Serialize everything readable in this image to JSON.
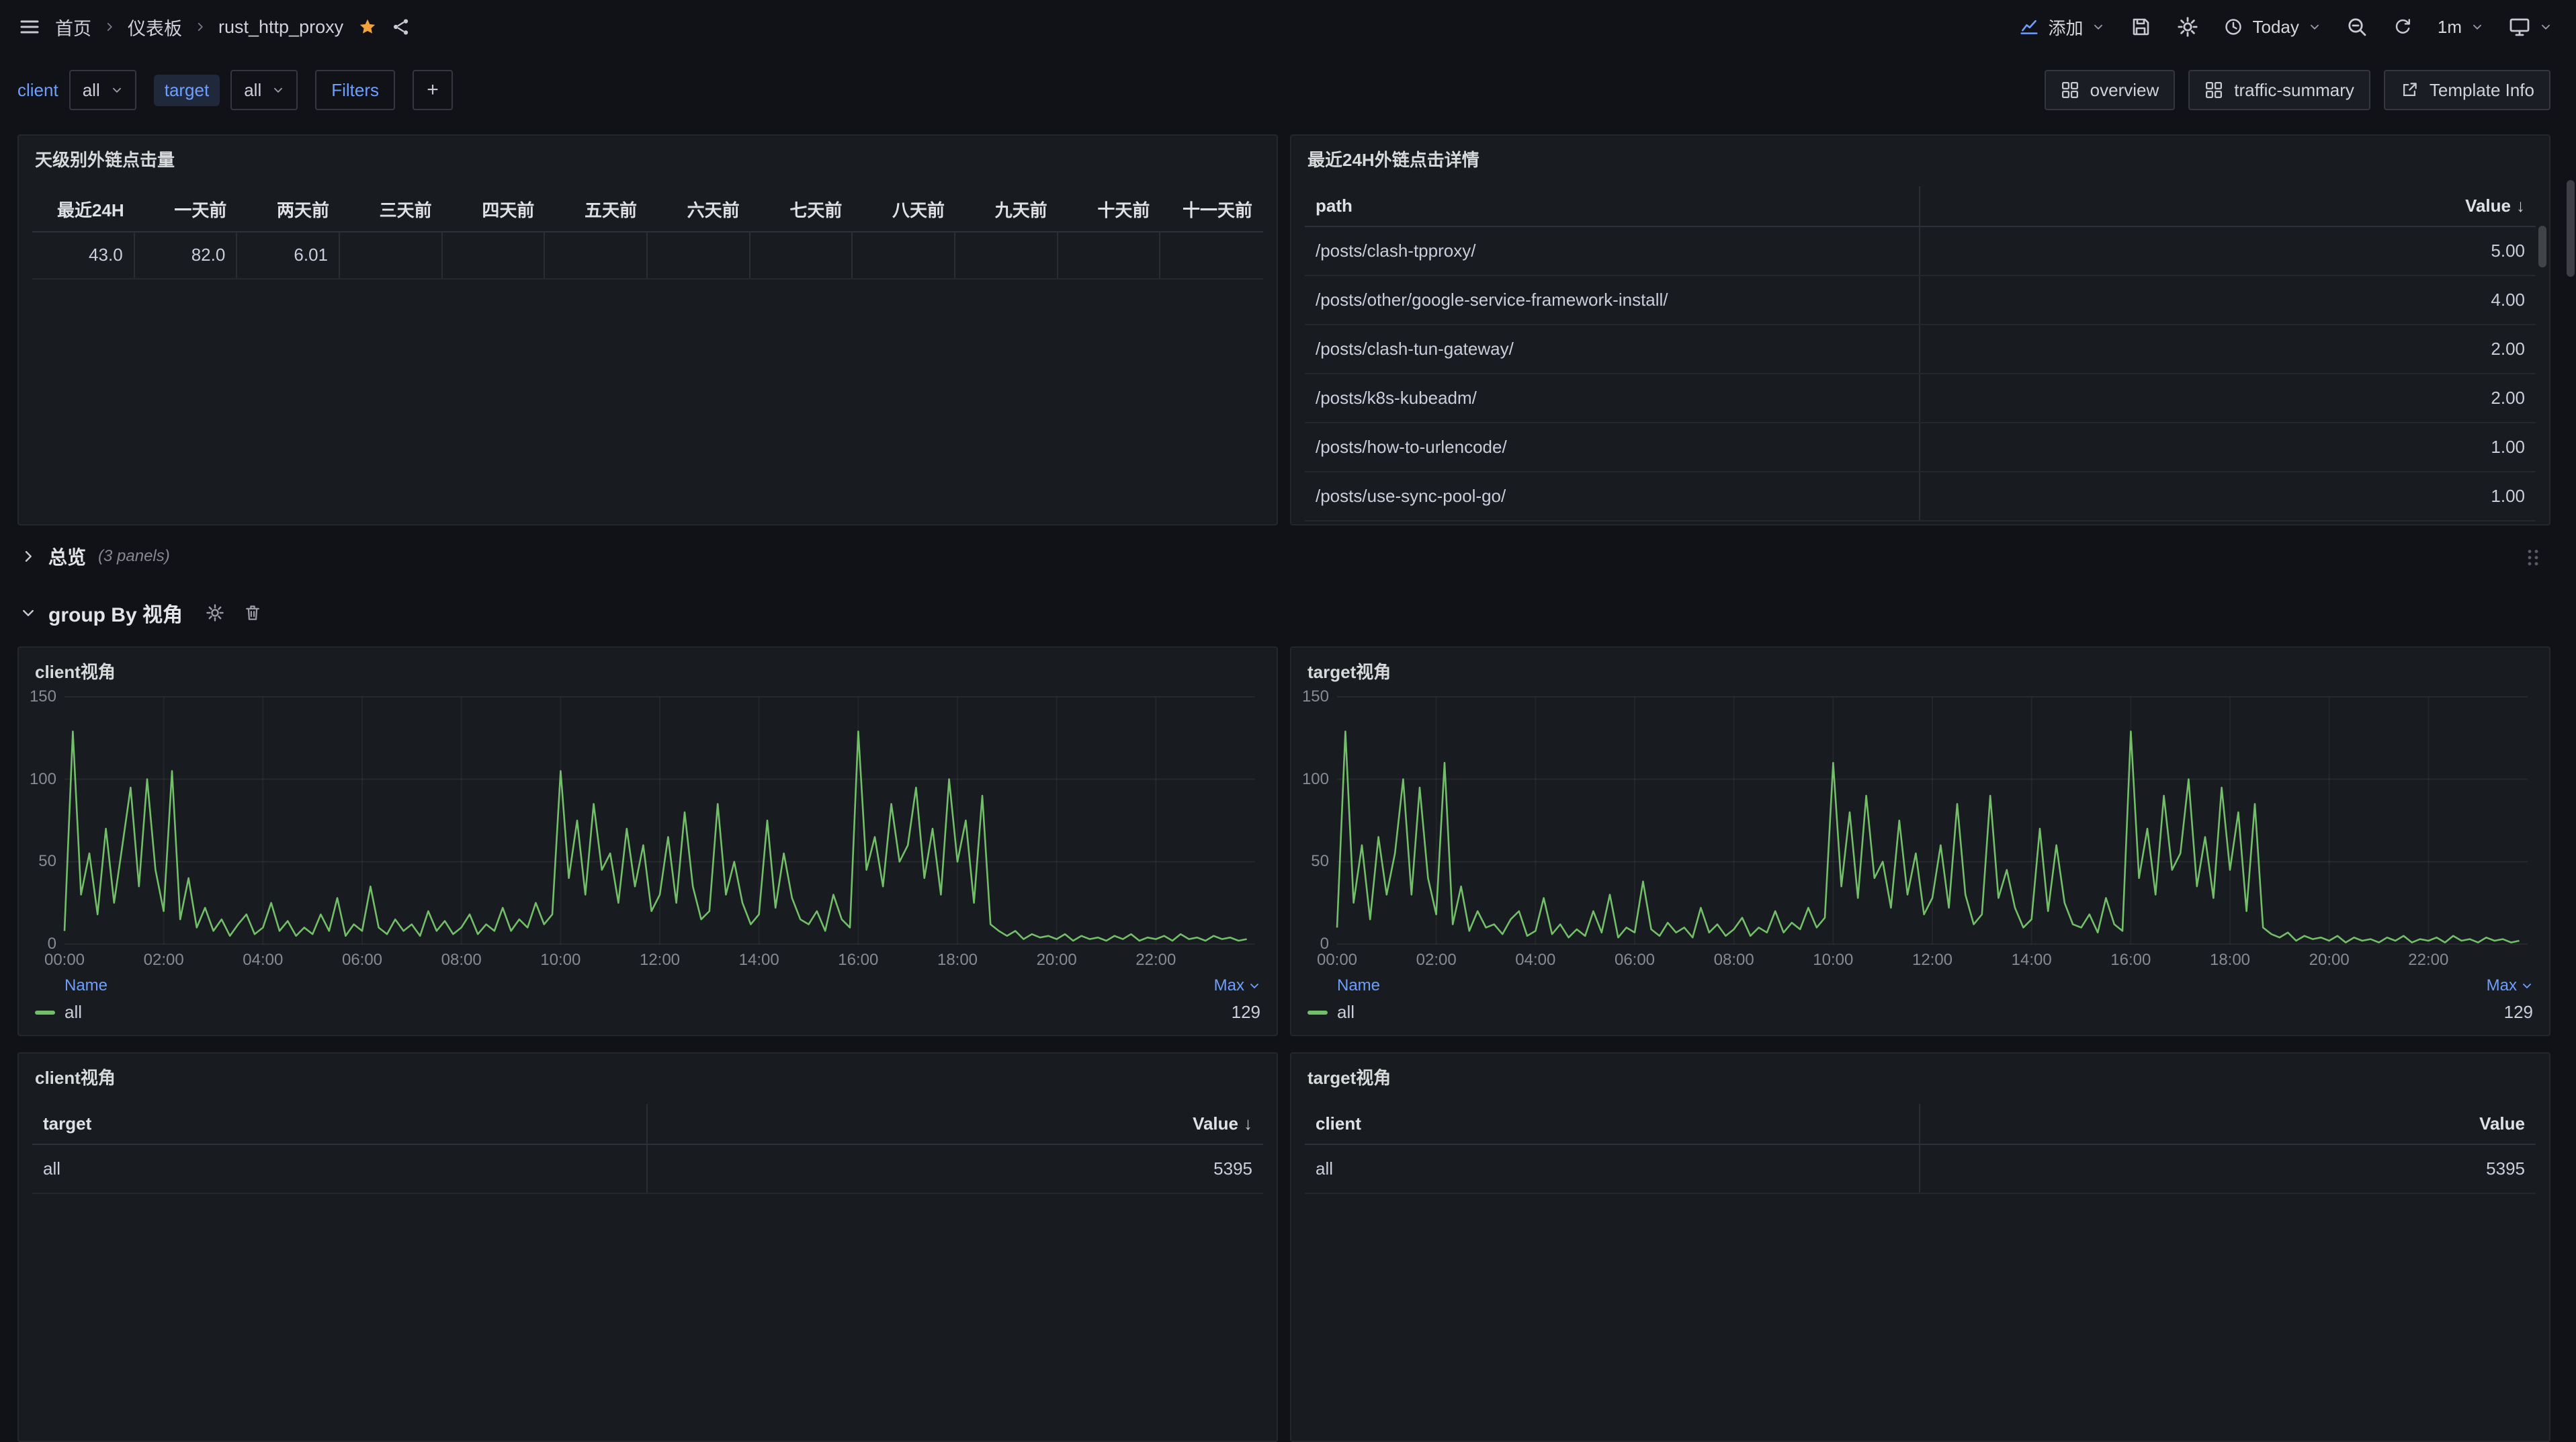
{
  "colors": {
    "bg": "#111217",
    "panel": "#181b1f",
    "blue": "#6e9fff",
    "green": "#73bf69",
    "star": "#f2a33c"
  },
  "nav": {
    "breadcrumbs": [
      "首页",
      "仪表板",
      "rust_http_proxy"
    ],
    "add_label": "添加",
    "time_label": "Today",
    "refresh_label": "1m"
  },
  "toolbar": {
    "variables": [
      {
        "label": "client",
        "value": "all"
      },
      {
        "label": "target",
        "value": "all"
      }
    ],
    "filters_label": "Filters",
    "add_button_label": "+",
    "links": [
      {
        "label": "overview"
      },
      {
        "label": "traffic-summary"
      },
      {
        "label": "Template Info"
      }
    ]
  },
  "rows": {
    "overview": {
      "title": "总览",
      "count": "(3 panels)"
    },
    "group_by": {
      "title": "group By 视角"
    }
  },
  "daily_panel": {
    "title": "天级别外链点击量",
    "columns": [
      "最近24H",
      "一天前",
      "两天前",
      "三天前",
      "四天前",
      "五天前",
      "六天前",
      "七天前",
      "八天前",
      "九天前",
      "十天前",
      "十一天前"
    ],
    "values": [
      "43.0",
      "82.0",
      "6.01",
      "",
      "",
      "",
      "",
      "",
      "",
      "",
      "",
      ""
    ]
  },
  "clicks_panel": {
    "title": "最近24H外链点击详情",
    "path_header": "path",
    "value_header": "Value",
    "sort_arrow": "↓",
    "rows": [
      {
        "path": "/posts/clash-tpproxy/",
        "value": "5.00"
      },
      {
        "path": "/posts/other/google-service-framework-install/",
        "value": "4.00"
      },
      {
        "path": "/posts/clash-tun-gateway/",
        "value": "2.00"
      },
      {
        "path": "/posts/k8s-kubeadm/",
        "value": "2.00"
      },
      {
        "path": "/posts/how-to-urlencode/",
        "value": "1.00"
      },
      {
        "path": "/posts/use-sync-pool-go/",
        "value": "1.00"
      }
    ]
  },
  "client_table": {
    "title": "client视角",
    "key_header": "target",
    "value_header": "Value",
    "sort_arrow": "↓",
    "rows": [
      {
        "key": "all",
        "value": "5395"
      }
    ]
  },
  "target_table": {
    "title": "target视角",
    "key_header": "client",
    "value_header": "Value",
    "rows": [
      {
        "key": "all",
        "value": "5395"
      }
    ]
  },
  "chart_data": [
    {
      "type": "line",
      "title": "client视角",
      "x_ticks": [
        "00:00",
        "02:00",
        "04:00",
        "06:00",
        "08:00",
        "10:00",
        "12:00",
        "14:00",
        "16:00",
        "18:00",
        "20:00",
        "22:00"
      ],
      "y_ticks": [
        0,
        50,
        100,
        150
      ],
      "ylim": [
        0,
        150
      ],
      "x_total_minutes": 1440,
      "point_interval_minutes": 10,
      "legend": {
        "name_header": "Name",
        "value_header": "Max"
      },
      "series": [
        {
          "name": "all",
          "max": 129,
          "color": "#73bf69",
          "values": [
            8,
            129,
            30,
            55,
            18,
            70,
            25,
            60,
            95,
            35,
            100,
            45,
            20,
            105,
            15,
            40,
            10,
            22,
            8,
            15,
            5,
            12,
            18,
            6,
            10,
            25,
            8,
            14,
            5,
            10,
            6,
            18,
            8,
            28,
            5,
            12,
            8,
            35,
            10,
            6,
            15,
            8,
            12,
            5,
            20,
            8,
            14,
            6,
            10,
            18,
            6,
            12,
            8,
            22,
            8,
            15,
            10,
            25,
            12,
            18,
            105,
            40,
            75,
            30,
            85,
            45,
            55,
            25,
            70,
            35,
            60,
            20,
            30,
            65,
            25,
            80,
            35,
            15,
            20,
            85,
            30,
            50,
            25,
            12,
            18,
            75,
            22,
            55,
            28,
            15,
            12,
            20,
            8,
            30,
            15,
            10,
            129,
            45,
            65,
            35,
            85,
            50,
            60,
            95,
            40,
            70,
            30,
            100,
            50,
            75,
            25,
            90,
            12,
            8,
            5,
            8,
            3,
            6,
            4,
            5,
            3,
            6,
            2,
            5,
            3,
            4,
            2,
            5,
            3,
            6,
            2,
            4,
            3,
            5,
            2,
            6,
            3,
            4,
            2,
            5,
            3,
            4,
            2,
            3
          ]
        }
      ]
    },
    {
      "type": "line",
      "title": "target视角",
      "x_ticks": [
        "00:00",
        "02:00",
        "04:00",
        "06:00",
        "08:00",
        "10:00",
        "12:00",
        "14:00",
        "16:00",
        "18:00",
        "20:00",
        "22:00"
      ],
      "y_ticks": [
        0,
        50,
        100,
        150
      ],
      "ylim": [
        0,
        150
      ],
      "x_total_minutes": 1440,
      "point_interval_minutes": 10,
      "legend": {
        "name_header": "Name",
        "value_header": "Max"
      },
      "series": [
        {
          "name": "all",
          "max": 129,
          "color": "#73bf69",
          "values": [
            10,
            129,
            25,
            60,
            15,
            65,
            30,
            55,
            100,
            30,
            95,
            40,
            18,
            110,
            12,
            35,
            8,
            20,
            10,
            12,
            6,
            15,
            20,
            5,
            8,
            28,
            6,
            12,
            4,
            9,
            5,
            20,
            7,
            30,
            4,
            10,
            7,
            38,
            9,
            5,
            13,
            7,
            10,
            4,
            22,
            7,
            12,
            5,
            9,
            16,
            5,
            10,
            7,
            20,
            7,
            13,
            9,
            22,
            10,
            16,
            110,
            35,
            80,
            28,
            90,
            40,
            50,
            22,
            75,
            30,
            55,
            18,
            28,
            60,
            22,
            85,
            30,
            12,
            18,
            90,
            28,
            45,
            22,
            10,
            15,
            70,
            20,
            60,
            25,
            12,
            10,
            18,
            7,
            28,
            12,
            8,
            129,
            40,
            70,
            30,
            90,
            45,
            55,
            100,
            35,
            65,
            28,
            95,
            45,
            80,
            20,
            85,
            10,
            6,
            4,
            7,
            2,
            5,
            3,
            4,
            2,
            5,
            1,
            4,
            2,
            3,
            1,
            4,
            2,
            5,
            1,
            3,
            2,
            4,
            1,
            5,
            2,
            3,
            1,
            4,
            2,
            3,
            1,
            2
          ]
        }
      ]
    }
  ]
}
